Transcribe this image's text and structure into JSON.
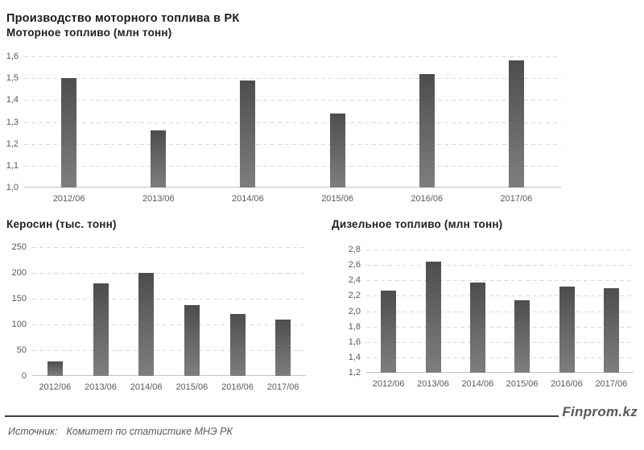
{
  "page": {
    "title": "Производство моторного топлива в РК",
    "footer": {
      "source_prefix": "Источник:",
      "source_text": "Комитет по статистике МНЭ РК",
      "brand": "Finprom.kz"
    },
    "colors": {
      "bar_gradient_top": "#4d4d4d",
      "bar_gradient_bottom": "#7e7e7e",
      "gridline": "#d9d9d9",
      "axis_line": "#c2c2c2",
      "tick_text": "#595959",
      "title_text": "#1a1a1a",
      "footer_text": "#595959",
      "footer_line": "#3f3f3f"
    }
  },
  "chart_data": [
    {
      "id": "motor-fuel",
      "type": "bar",
      "title": "Моторное топливо (млн тонн)",
      "categories": [
        "2012/06",
        "2013/06",
        "2014/06",
        "2015/06",
        "2016/06",
        "2017/06"
      ],
      "values": [
        1.5,
        1.26,
        1.49,
        1.34,
        1.52,
        1.58
      ],
      "ylim": [
        1.0,
        1.6
      ],
      "ytick_labels": [
        "1,0",
        "1,1",
        "1,2",
        "1,3",
        "1,4",
        "1,5",
        "1,6"
      ],
      "grid": true,
      "legend": "none",
      "xlabel": "",
      "ylabel": ""
    },
    {
      "id": "kerosene",
      "type": "bar",
      "title": "Керосин (тыс. тонн)",
      "categories": [
        "2012/06",
        "2013/06",
        "2014/06",
        "2015/06",
        "2016/06",
        "2017/06"
      ],
      "values": [
        28,
        180,
        200,
        138,
        120,
        110
      ],
      "ylim": [
        0,
        250
      ],
      "ytick_labels": [
        "0",
        "50",
        "100",
        "150",
        "200",
        "250"
      ],
      "grid": true,
      "legend": "none",
      "xlabel": "",
      "ylabel": ""
    },
    {
      "id": "diesel",
      "type": "bar",
      "title": "Дизельное топливо (млн тонн)",
      "categories": [
        "2012/06",
        "2013/06",
        "2014/06",
        "2015/06",
        "2016/06",
        "2017/06"
      ],
      "values": [
        2.27,
        2.64,
        2.37,
        2.14,
        2.32,
        2.3
      ],
      "ylim": [
        1.2,
        2.8
      ],
      "ytick_labels": [
        "1,2",
        "1,4",
        "1,6",
        "1,8",
        "2,0",
        "2,2",
        "2,4",
        "2,6",
        "2,8"
      ],
      "grid": true,
      "legend": "none",
      "xlabel": "",
      "ylabel": ""
    }
  ]
}
